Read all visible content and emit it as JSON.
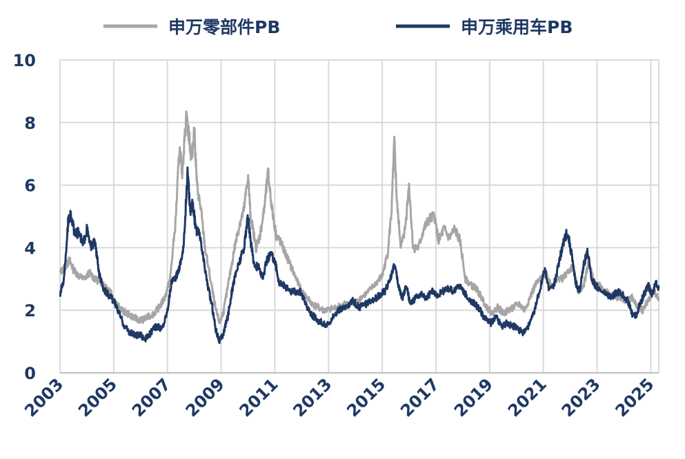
{
  "chart_data": {
    "type": "line",
    "title": "",
    "xlabel": "",
    "ylabel": "",
    "xlim": [
      2003.0,
      2025.3
    ],
    "ylim": [
      0,
      10
    ],
    "y_ticks": [
      "0",
      "2",
      "4",
      "6",
      "8",
      "10"
    ],
    "x_ticks": [
      "2003",
      "2005",
      "2007",
      "2009",
      "2011",
      "2013",
      "2015",
      "2017",
      "2019",
      "2021",
      "2023",
      "2025"
    ],
    "grid": "vertical and horizontal",
    "legend_position": "top",
    "colors": {
      "parts": "#a6a6a6",
      "auto": "#1f3864",
      "grid": "#d9d9d9",
      "text": "#1f3864"
    },
    "series": [
      {
        "name": "申万零部件PB",
        "color": "#a6a6a6",
        "points": [
          [
            2003.0,
            3.2
          ],
          [
            2003.2,
            3.4
          ],
          [
            2003.35,
            3.6
          ],
          [
            2003.5,
            3.3
          ],
          [
            2003.7,
            3.1
          ],
          [
            2003.9,
            3.0
          ],
          [
            2004.1,
            3.2
          ],
          [
            2004.3,
            3.0
          ],
          [
            2004.5,
            2.9
          ],
          [
            2004.7,
            2.8
          ],
          [
            2004.9,
            2.6
          ],
          [
            2005.1,
            2.2
          ],
          [
            2005.3,
            2.0
          ],
          [
            2005.5,
            1.9
          ],
          [
            2005.7,
            1.8
          ],
          [
            2005.9,
            1.7
          ],
          [
            2006.1,
            1.7
          ],
          [
            2006.3,
            1.8
          ],
          [
            2006.5,
            1.9
          ],
          [
            2006.7,
            2.1
          ],
          [
            2006.9,
            2.4
          ],
          [
            2007.1,
            3.0
          ],
          [
            2007.3,
            4.8
          ],
          [
            2007.45,
            7.2
          ],
          [
            2007.55,
            6.4
          ],
          [
            2007.7,
            8.2
          ],
          [
            2007.8,
            7.6
          ],
          [
            2007.9,
            6.8
          ],
          [
            2008.0,
            7.8
          ],
          [
            2008.1,
            6.0
          ],
          [
            2008.25,
            5.2
          ],
          [
            2008.4,
            4.0
          ],
          [
            2008.6,
            3.0
          ],
          [
            2008.8,
            2.0
          ],
          [
            2008.95,
            1.6
          ],
          [
            2009.1,
            2.0
          ],
          [
            2009.3,
            3.0
          ],
          [
            2009.5,
            4.0
          ],
          [
            2009.7,
            4.8
          ],
          [
            2009.85,
            5.2
          ],
          [
            2010.0,
            6.3
          ],
          [
            2010.1,
            5.0
          ],
          [
            2010.3,
            4.0
          ],
          [
            2010.45,
            4.4
          ],
          [
            2010.6,
            5.2
          ],
          [
            2010.75,
            6.4
          ],
          [
            2010.9,
            5.2
          ],
          [
            2011.05,
            4.4
          ],
          [
            2011.2,
            4.2
          ],
          [
            2011.4,
            3.8
          ],
          [
            2011.6,
            3.4
          ],
          [
            2011.8,
            3.0
          ],
          [
            2012.0,
            2.6
          ],
          [
            2012.2,
            2.4
          ],
          [
            2012.4,
            2.2
          ],
          [
            2012.6,
            2.1
          ],
          [
            2012.8,
            2.0
          ],
          [
            2013.0,
            2.0
          ],
          [
            2013.3,
            2.1
          ],
          [
            2013.6,
            2.2
          ],
          [
            2013.9,
            2.2
          ],
          [
            2014.2,
            2.4
          ],
          [
            2014.5,
            2.6
          ],
          [
            2014.8,
            2.9
          ],
          [
            2015.0,
            3.1
          ],
          [
            2015.2,
            3.8
          ],
          [
            2015.35,
            5.2
          ],
          [
            2015.45,
            7.4
          ],
          [
            2015.55,
            5.4
          ],
          [
            2015.7,
            4.0
          ],
          [
            2015.85,
            4.6
          ],
          [
            2016.0,
            6.0
          ],
          [
            2016.15,
            4.0
          ],
          [
            2016.35,
            4.0
          ],
          [
            2016.55,
            4.6
          ],
          [
            2016.75,
            4.9
          ],
          [
            2016.95,
            5.0
          ],
          [
            2017.1,
            4.2
          ],
          [
            2017.3,
            4.6
          ],
          [
            2017.5,
            4.3
          ],
          [
            2017.7,
            4.6
          ],
          [
            2017.9,
            4.2
          ],
          [
            2018.1,
            3.0
          ],
          [
            2018.3,
            2.8
          ],
          [
            2018.5,
            2.7
          ],
          [
            2018.7,
            2.4
          ],
          [
            2018.9,
            2.1
          ],
          [
            2019.1,
            1.9
          ],
          [
            2019.3,
            2.1
          ],
          [
            2019.5,
            1.9
          ],
          [
            2019.7,
            2.0
          ],
          [
            2019.9,
            2.1
          ],
          [
            2020.1,
            2.2
          ],
          [
            2020.3,
            2.0
          ],
          [
            2020.5,
            2.4
          ],
          [
            2020.7,
            2.8
          ],
          [
            2020.9,
            3.0
          ],
          [
            2021.1,
            3.2
          ],
          [
            2021.3,
            2.8
          ],
          [
            2021.5,
            3.0
          ],
          [
            2021.7,
            3.0
          ],
          [
            2021.9,
            3.2
          ],
          [
            2022.1,
            3.4
          ],
          [
            2022.3,
            2.6
          ],
          [
            2022.5,
            2.8
          ],
          [
            2022.7,
            3.6
          ],
          [
            2022.9,
            2.8
          ],
          [
            2023.1,
            2.8
          ],
          [
            2023.3,
            2.6
          ],
          [
            2023.5,
            2.5
          ],
          [
            2023.7,
            2.4
          ],
          [
            2023.9,
            2.4
          ],
          [
            2024.1,
            2.3
          ],
          [
            2024.3,
            2.4
          ],
          [
            2024.5,
            2.1
          ],
          [
            2024.7,
            2.0
          ],
          [
            2024.9,
            2.3
          ],
          [
            2025.1,
            2.6
          ],
          [
            2025.3,
            2.4
          ]
        ]
      },
      {
        "name": "申万乘用车PB",
        "color": "#1f3864",
        "points": [
          [
            2003.0,
            2.5
          ],
          [
            2003.15,
            3.0
          ],
          [
            2003.3,
            4.8
          ],
          [
            2003.4,
            5.1
          ],
          [
            2003.55,
            4.4
          ],
          [
            2003.7,
            4.5
          ],
          [
            2003.85,
            4.1
          ],
          [
            2004.0,
            4.6
          ],
          [
            2004.15,
            4.0
          ],
          [
            2004.3,
            4.2
          ],
          [
            2004.45,
            3.2
          ],
          [
            2004.6,
            2.7
          ],
          [
            2004.8,
            2.5
          ],
          [
            2005.0,
            2.3
          ],
          [
            2005.2,
            1.9
          ],
          [
            2005.4,
            1.5
          ],
          [
            2005.6,
            1.3
          ],
          [
            2005.8,
            1.2
          ],
          [
            2006.0,
            1.2
          ],
          [
            2006.2,
            1.1
          ],
          [
            2006.4,
            1.3
          ],
          [
            2006.6,
            1.5
          ],
          [
            2006.8,
            1.4
          ],
          [
            2007.0,
            2.0
          ],
          [
            2007.15,
            2.9
          ],
          [
            2007.3,
            3.0
          ],
          [
            2007.45,
            3.4
          ],
          [
            2007.6,
            4.0
          ],
          [
            2007.75,
            6.4
          ],
          [
            2007.85,
            5.2
          ],
          [
            2007.95,
            5.4
          ],
          [
            2008.05,
            4.6
          ],
          [
            2008.2,
            4.4
          ],
          [
            2008.35,
            3.6
          ],
          [
            2008.5,
            2.8
          ],
          [
            2008.65,
            2.2
          ],
          [
            2008.8,
            1.4
          ],
          [
            2008.95,
            1.0
          ],
          [
            2009.1,
            1.3
          ],
          [
            2009.25,
            1.8
          ],
          [
            2009.4,
            2.6
          ],
          [
            2009.55,
            3.2
          ],
          [
            2009.7,
            3.6
          ],
          [
            2009.85,
            4.0
          ],
          [
            2010.0,
            5.0
          ],
          [
            2010.1,
            4.2
          ],
          [
            2010.25,
            3.4
          ],
          [
            2010.4,
            3.4
          ],
          [
            2010.55,
            3.0
          ],
          [
            2010.7,
            3.6
          ],
          [
            2010.85,
            3.8
          ],
          [
            2011.0,
            3.6
          ],
          [
            2011.15,
            2.9
          ],
          [
            2011.35,
            2.8
          ],
          [
            2011.55,
            2.6
          ],
          [
            2011.75,
            2.6
          ],
          [
            2011.95,
            2.6
          ],
          [
            2012.15,
            2.2
          ],
          [
            2012.35,
            1.9
          ],
          [
            2012.55,
            1.7
          ],
          [
            2012.75,
            1.6
          ],
          [
            2012.95,
            1.5
          ],
          [
            2013.15,
            1.8
          ],
          [
            2013.4,
            2.0
          ],
          [
            2013.65,
            2.1
          ],
          [
            2013.9,
            2.3
          ],
          [
            2014.15,
            2.1
          ],
          [
            2014.4,
            2.2
          ],
          [
            2014.65,
            2.3
          ],
          [
            2014.9,
            2.5
          ],
          [
            2015.1,
            2.6
          ],
          [
            2015.3,
            3.0
          ],
          [
            2015.45,
            3.5
          ],
          [
            2015.6,
            2.8
          ],
          [
            2015.75,
            2.4
          ],
          [
            2015.9,
            2.8
          ],
          [
            2016.05,
            2.2
          ],
          [
            2016.25,
            2.4
          ],
          [
            2016.45,
            2.5
          ],
          [
            2016.65,
            2.4
          ],
          [
            2016.85,
            2.6
          ],
          [
            2017.05,
            2.5
          ],
          [
            2017.25,
            2.6
          ],
          [
            2017.45,
            2.7
          ],
          [
            2017.65,
            2.6
          ],
          [
            2017.85,
            2.8
          ],
          [
            2018.05,
            2.6
          ],
          [
            2018.25,
            2.3
          ],
          [
            2018.45,
            2.2
          ],
          [
            2018.65,
            2.0
          ],
          [
            2018.85,
            1.7
          ],
          [
            2019.05,
            1.6
          ],
          [
            2019.25,
            1.8
          ],
          [
            2019.45,
            1.5
          ],
          [
            2019.65,
            1.6
          ],
          [
            2019.85,
            1.5
          ],
          [
            2020.05,
            1.4
          ],
          [
            2020.25,
            1.3
          ],
          [
            2020.45,
            1.5
          ],
          [
            2020.65,
            1.9
          ],
          [
            2020.85,
            2.6
          ],
          [
            2021.05,
            3.3
          ],
          [
            2021.2,
            2.7
          ],
          [
            2021.4,
            2.8
          ],
          [
            2021.6,
            3.6
          ],
          [
            2021.75,
            4.2
          ],
          [
            2021.9,
            4.5
          ],
          [
            2022.05,
            3.8
          ],
          [
            2022.2,
            2.9
          ],
          [
            2022.35,
            2.6
          ],
          [
            2022.5,
            3.4
          ],
          [
            2022.65,
            3.9
          ],
          [
            2022.8,
            3.0
          ],
          [
            2022.95,
            2.8
          ],
          [
            2023.15,
            2.6
          ],
          [
            2023.35,
            2.5
          ],
          [
            2023.55,
            2.4
          ],
          [
            2023.75,
            2.6
          ],
          [
            2023.95,
            2.5
          ],
          [
            2024.15,
            2.3
          ],
          [
            2024.3,
            1.9
          ],
          [
            2024.45,
            1.8
          ],
          [
            2024.6,
            2.2
          ],
          [
            2024.75,
            2.5
          ],
          [
            2024.9,
            2.8
          ],
          [
            2025.05,
            2.5
          ],
          [
            2025.2,
            2.9
          ],
          [
            2025.3,
            2.7
          ]
        ]
      }
    ]
  }
}
